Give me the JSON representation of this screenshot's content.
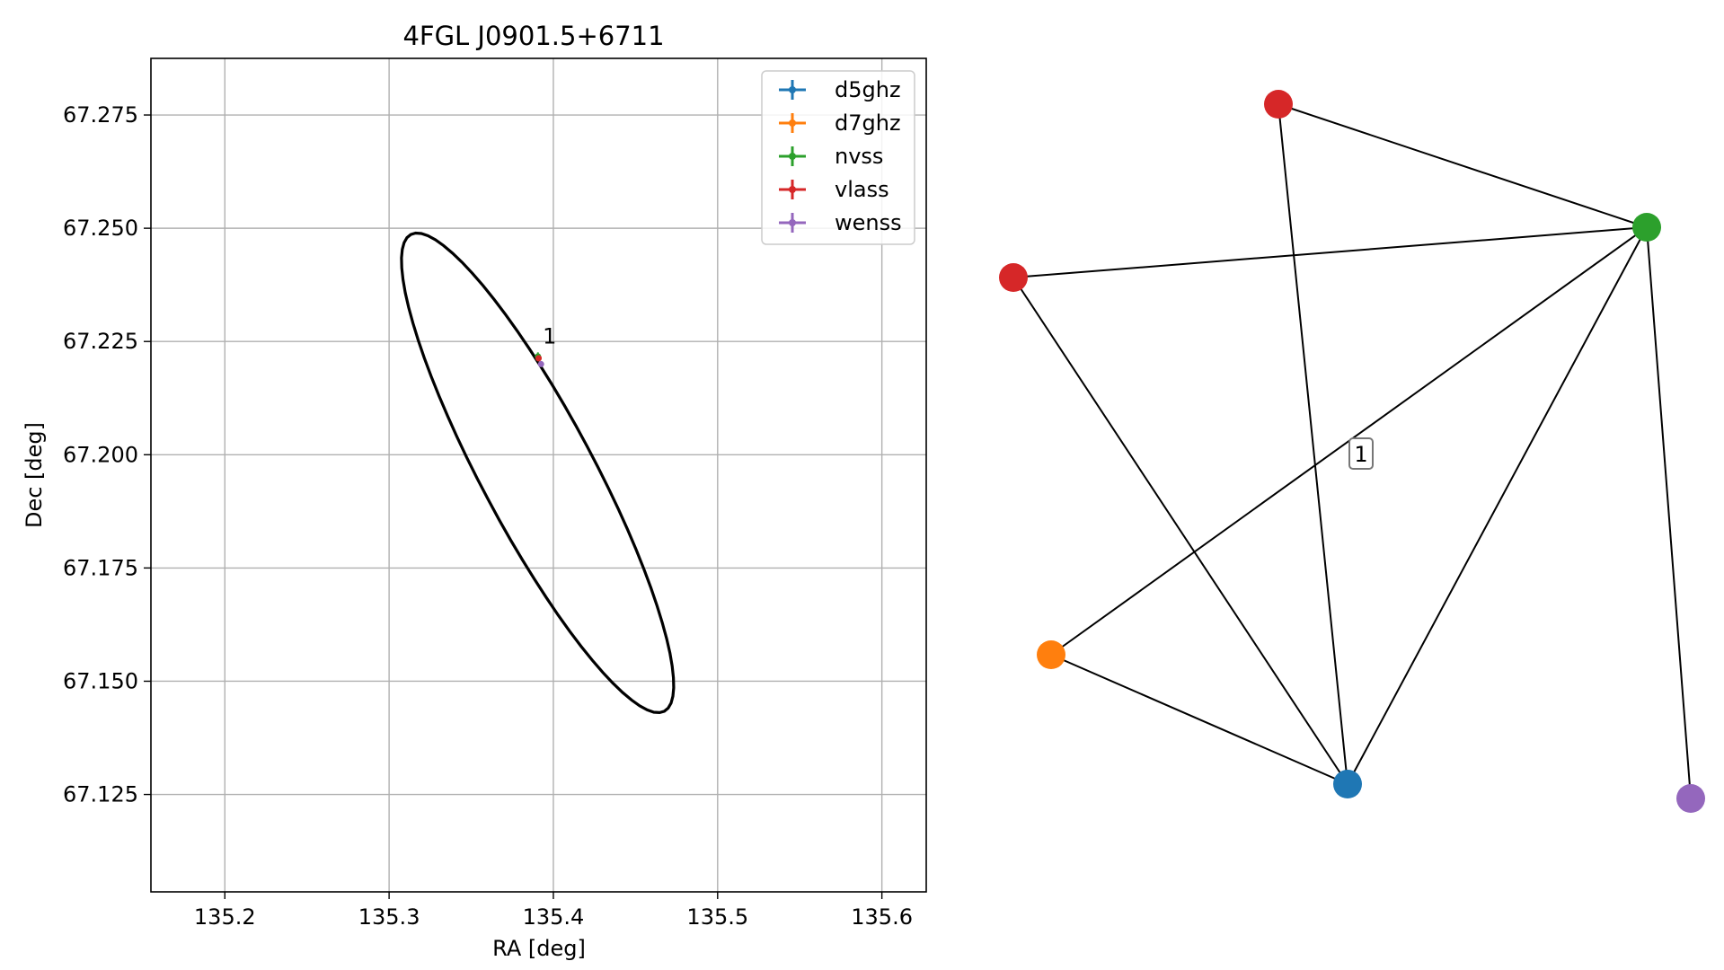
{
  "chart_data": [
    {
      "type": "scatter",
      "title": "4FGL J0901.5+6711",
      "xlabel": "RA [deg]",
      "ylabel": "Dec [deg]",
      "xlim": [
        135.155,
        135.627
      ],
      "ylim": [
        67.1035,
        67.2875
      ],
      "xticks": [
        135.2,
        135.3,
        135.4,
        135.5,
        135.6
      ],
      "xtick_labels": [
        "135.2",
        "135.3",
        "135.4",
        "135.5",
        "135.6"
      ],
      "yticks": [
        67.125,
        67.15,
        67.175,
        67.2,
        67.225,
        67.25,
        67.275
      ],
      "ytick_labels": [
        "67.125",
        "67.150",
        "67.175",
        "67.200",
        "67.225",
        "67.250",
        "67.275"
      ],
      "grid": true,
      "legend_position": "top-right",
      "series": [
        {
          "name": "d5ghz",
          "color": "#1f77b4",
          "points": [
            {
              "x": 135.391,
              "y": 67.2213,
              "xerr": 0.0005,
              "yerr": 0.0002
            }
          ]
        },
        {
          "name": "d7ghz",
          "color": "#ff7f0e",
          "points": [
            {
              "x": 135.391,
              "y": 67.2213,
              "xerr": 0.0005,
              "yerr": 0.0002
            }
          ]
        },
        {
          "name": "nvss",
          "color": "#2ca02c",
          "points": [
            {
              "x": 135.3906,
              "y": 67.2217,
              "xerr": 0.0008,
              "yerr": 0.0009
            }
          ]
        },
        {
          "name": "vlass",
          "color": "#d62728",
          "points": [
            {
              "x": 135.391,
              "y": 67.2213,
              "xerr": 0.0004,
              "yerr": 0.0002
            }
          ]
        },
        {
          "name": "wenss",
          "color": "#9467bd",
          "points": [
            {
              "x": 135.3925,
              "y": 67.22,
              "xerr": 0.0004,
              "yerr": 0.0004
            }
          ]
        }
      ],
      "ellipse": {
        "center": {
          "x": 135.3904,
          "y": 67.196
        },
        "semi_axes_data": {
          "major": 0.0596,
          "minor": 0.0342
        },
        "description_color": "#000000"
      },
      "annotations": [
        {
          "text": "1",
          "x": 135.3935,
          "y": 67.2245
        }
      ]
    },
    {
      "type": "network",
      "nodes": [
        {
          "id": "n-red-top",
          "color": "#d62728"
        },
        {
          "id": "n-green",
          "color": "#2ca02c"
        },
        {
          "id": "n-red-left",
          "color": "#d62728"
        },
        {
          "id": "n-orange",
          "color": "#ff7f0e"
        },
        {
          "id": "n-blue",
          "color": "#1f77b4"
        },
        {
          "id": "n-purple",
          "color": "#9467bd"
        }
      ],
      "edges": [
        [
          "n-red-top",
          "n-green"
        ],
        [
          "n-red-top",
          "n-blue"
        ],
        [
          "n-red-left",
          "n-green"
        ],
        [
          "n-red-left",
          "n-blue"
        ],
        [
          "n-orange",
          "n-green"
        ],
        [
          "n-orange",
          "n-blue"
        ],
        [
          "n-blue",
          "n-green"
        ],
        [
          "n-green",
          "n-purple"
        ]
      ],
      "edge_label": {
        "text": "1"
      }
    }
  ]
}
